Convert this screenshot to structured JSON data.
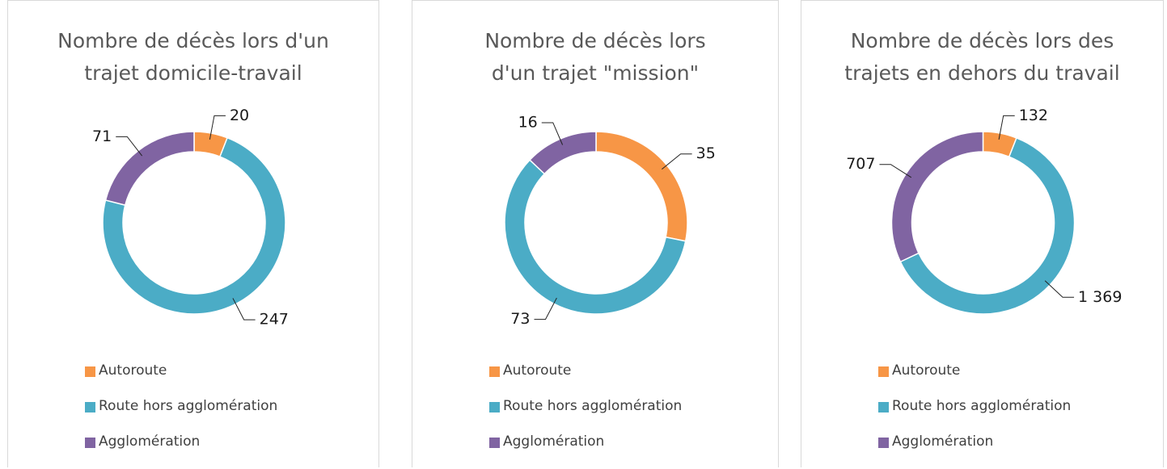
{
  "chart_data": [
    {
      "type": "pie",
      "title": "Nombre de décès lors d'un trajet domicile-travail",
      "categories": [
        "Autoroute",
        "Route hors agglomération",
        "Agglomération"
      ],
      "values": [
        20,
        247,
        71
      ],
      "colors": [
        "#f79646",
        "#4bacc6",
        "#8064a2"
      ]
    },
    {
      "type": "pie",
      "title": "Nombre de décès lors d'un trajet \"mission\"",
      "categories": [
        "Autoroute",
        "Route hors agglomération",
        "Agglomération"
      ],
      "values": [
        35,
        73,
        16
      ],
      "colors": [
        "#f79646",
        "#4bacc6",
        "#8064a2"
      ]
    },
    {
      "type": "pie",
      "title": "Nombre de décès lors des trajets en dehors du travail",
      "categories": [
        "Autoroute",
        "Route hors agglomération",
        "Agglomération"
      ],
      "values": [
        132,
        1369,
        707
      ],
      "value_labels": [
        "132",
        "1 369",
        "707"
      ],
      "colors": [
        "#f79646",
        "#4bacc6",
        "#8064a2"
      ]
    }
  ]
}
